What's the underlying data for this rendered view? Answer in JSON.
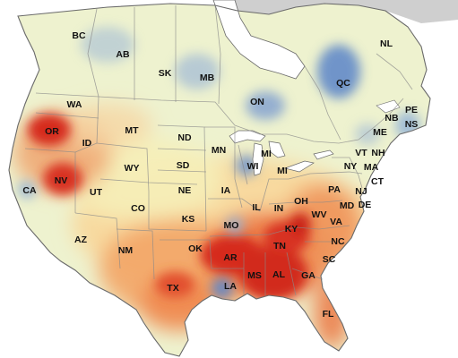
{
  "palette": {
    "ocean": "#ffffff",
    "arctic_land": "#cfcfcf",
    "base_land": "#f2f0c2",
    "cool": "#5b84c8",
    "warm": "#ef9a5a",
    "hot": "#d62a1f",
    "border": "#8a8a8a"
  },
  "labels": [
    {
      "id": "bc",
      "text": "BC"
    },
    {
      "id": "ab",
      "text": "AB"
    },
    {
      "id": "sk",
      "text": "SK"
    },
    {
      "id": "mb",
      "text": "MB"
    },
    {
      "id": "on",
      "text": "ON"
    },
    {
      "id": "qc",
      "text": "QC"
    },
    {
      "id": "nl",
      "text": "NL"
    },
    {
      "id": "pe",
      "text": "PE"
    },
    {
      "id": "nb",
      "text": "NB"
    },
    {
      "id": "ns",
      "text": "NS"
    },
    {
      "id": "me",
      "text": "ME"
    },
    {
      "id": "vt",
      "text": "VT"
    },
    {
      "id": "nh",
      "text": "NH"
    },
    {
      "id": "ma",
      "text": "MA"
    },
    {
      "id": "ct",
      "text": "CT"
    },
    {
      "id": "ny",
      "text": "NY"
    },
    {
      "id": "nj",
      "text": "NJ"
    },
    {
      "id": "pa",
      "text": "PA"
    },
    {
      "id": "md",
      "text": "MD"
    },
    {
      "id": "de",
      "text": "DE"
    },
    {
      "id": "va",
      "text": "VA"
    },
    {
      "id": "wv",
      "text": "WV"
    },
    {
      "id": "oh",
      "text": "OH"
    },
    {
      "id": "mi1",
      "text": "MI"
    },
    {
      "id": "mi2",
      "text": "MI"
    },
    {
      "id": "wi",
      "text": "WI"
    },
    {
      "id": "mn",
      "text": "MN"
    },
    {
      "id": "il",
      "text": "IL"
    },
    {
      "id": "in",
      "text": "IN"
    },
    {
      "id": "ky",
      "text": "KY"
    },
    {
      "id": "tn",
      "text": "TN"
    },
    {
      "id": "nc",
      "text": "NC"
    },
    {
      "id": "sc",
      "text": "SC"
    },
    {
      "id": "ga",
      "text": "GA"
    },
    {
      "id": "al",
      "text": "AL"
    },
    {
      "id": "ms",
      "text": "MS"
    },
    {
      "id": "fl",
      "text": "FL"
    },
    {
      "id": "la",
      "text": "LA"
    },
    {
      "id": "ar",
      "text": "AR"
    },
    {
      "id": "mo",
      "text": "MO"
    },
    {
      "id": "ia",
      "text": "IA"
    },
    {
      "id": "ks",
      "text": "KS"
    },
    {
      "id": "ne",
      "text": "NE"
    },
    {
      "id": "sd",
      "text": "SD"
    },
    {
      "id": "nd",
      "text": "ND"
    },
    {
      "id": "ok",
      "text": "OK"
    },
    {
      "id": "tx",
      "text": "TX"
    },
    {
      "id": "nm",
      "text": "NM"
    },
    {
      "id": "co",
      "text": "CO"
    },
    {
      "id": "wy",
      "text": "WY"
    },
    {
      "id": "mt",
      "text": "MT"
    },
    {
      "id": "id",
      "text": "ID"
    },
    {
      "id": "wa",
      "text": "WA"
    },
    {
      "id": "or",
      "text": "OR"
    },
    {
      "id": "nv",
      "text": "NV"
    },
    {
      "id": "ut",
      "text": "UT"
    },
    {
      "id": "az",
      "text": "AZ"
    },
    {
      "id": "ca",
      "text": "CA"
    }
  ]
}
